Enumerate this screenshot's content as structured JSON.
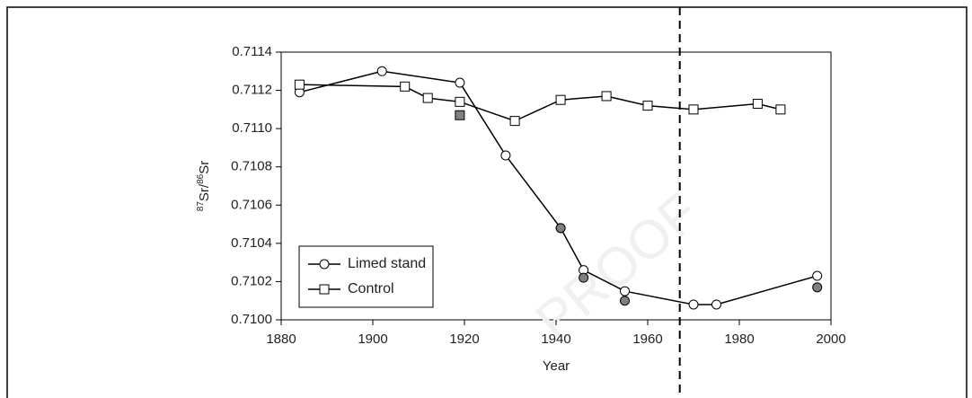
{
  "chart_data": {
    "type": "line",
    "y_label": {
      "sup1": "87",
      "t1": "Sr/",
      "sup2": "86",
      "t2": "Sr"
    },
    "x_label": "Year",
    "watermark": "PROOF",
    "vline": 1967,
    "xlim": [
      1880,
      2000
    ],
    "xticks": [
      1880,
      1900,
      1920,
      1940,
      1960,
      1980,
      2000
    ],
    "ylim": [
      0.71,
      0.7114
    ],
    "yticks": [
      {
        "value": 0.71,
        "label": "0.7100"
      },
      {
        "value": 0.7102,
        "label": "0.7102"
      },
      {
        "value": 0.7104,
        "label": "0.7104"
      },
      {
        "value": 0.7106,
        "label": "0.7106"
      },
      {
        "value": 0.7108,
        "label": "0.7108"
      },
      {
        "value": 0.711,
        "label": "0.7110"
      },
      {
        "value": 0.7112,
        "label": "0.7112"
      },
      {
        "value": 0.7114,
        "label": "0.7114"
      }
    ],
    "legend": "lower left",
    "series": [
      {
        "name": "Limed stand",
        "marker": "circle",
        "color": "#ffffff",
        "line": true,
        "x": [
          1884,
          1902,
          1919,
          1929,
          1941,
          1946,
          1955,
          1970,
          1975,
          1997
        ],
        "values": [
          0.71119,
          0.7113,
          0.71124,
          0.71086,
          0.71048,
          0.71026,
          0.71015,
          0.71008,
          0.71008,
          0.71023
        ]
      },
      {
        "name": "Control",
        "marker": "square",
        "color": "#ffffff",
        "line": true,
        "x": [
          1884,
          1907,
          1912,
          1919,
          1931,
          1941,
          1951,
          1960,
          1970,
          1984,
          1989
        ],
        "values": [
          0.71123,
          0.71122,
          0.71116,
          0.71114,
          0.71104,
          0.71115,
          0.71117,
          0.71112,
          0.7111,
          0.71113,
          0.7111
        ]
      },
      {
        "marker": "circle",
        "color": "#808080",
        "line": false,
        "x": [
          1941,
          1946,
          1955,
          1997
        ],
        "values": [
          0.71048,
          0.71022,
          0.7101,
          0.71017
        ]
      },
      {
        "marker": "square",
        "color": "#808080",
        "line": false,
        "x": [
          1919
        ],
        "values": [
          0.71107
        ]
      }
    ]
  }
}
